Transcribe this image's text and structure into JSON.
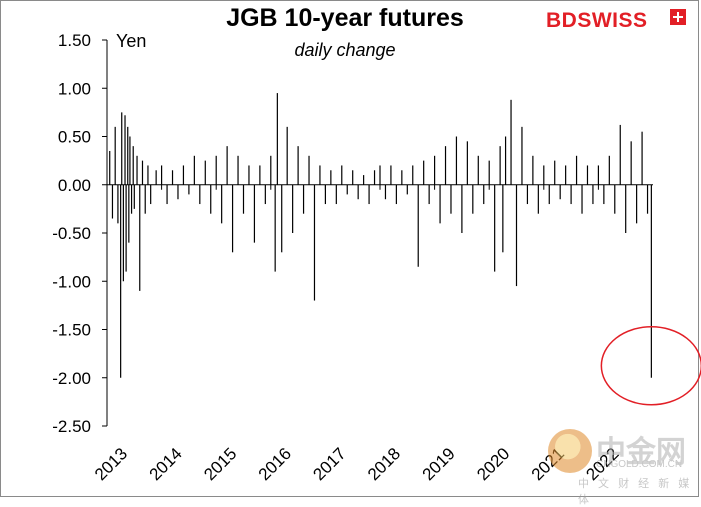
{
  "brand": {
    "prefix": "BD",
    "suffix": "SWISS"
  },
  "watermark": {
    "name": "中金网",
    "domain": "CNGOLD.COM.CN",
    "tagline": "中 文 财 经 新 媒 体"
  },
  "chart_data": {
    "type": "bar",
    "title": "JGB 10-year futures",
    "subtitle": "daily change",
    "ylabel": "Yen",
    "xlabel": "",
    "ylim": [
      -2.5,
      1.5
    ],
    "yticks": [
      1.5,
      1.0,
      0.5,
      0.0,
      -0.5,
      -1.0,
      -1.5,
      -2.0,
      -2.5
    ],
    "ytick_labels": [
      "1.50",
      "1.00",
      "0.50",
      "0.00",
      "-0.50",
      "-1.00",
      "-1.50",
      "-2.00",
      "-2.50"
    ],
    "xlim": [
      2013.0,
      2023.0
    ],
    "xtick_labels": [
      "2013",
      "2014",
      "2015",
      "2016",
      "2017",
      "2018",
      "2019",
      "2020",
      "2021",
      "2022"
    ],
    "grid": false,
    "highlight": {
      "shape": "ellipse",
      "color": "#e21f26",
      "around": "last observation"
    },
    "series": [
      {
        "color": "#000000",
        "x": [
          2013.05,
          2013.1,
          2013.15,
          2013.2,
          2013.25,
          2013.27,
          2013.3,
          2013.33,
          2013.35,
          2013.38,
          2013.4,
          2013.42,
          2013.45,
          2013.48,
          2013.5,
          2013.55,
          2013.6,
          2013.65,
          2013.7,
          2013.75,
          2013.8,
          2013.9,
          2014.0,
          2014.1,
          2014.2,
          2014.3,
          2014.4,
          2014.5,
          2014.6,
          2014.7,
          2014.8,
          2014.9,
          2015.0,
          2015.1,
          2015.2,
          2015.3,
          2015.4,
          2015.5,
          2015.6,
          2015.7,
          2015.8,
          2015.9,
          2016.0,
          2016.08,
          2016.12,
          2016.2,
          2016.3,
          2016.4,
          2016.5,
          2016.6,
          2016.7,
          2016.8,
          2016.9,
          2017.0,
          2017.1,
          2017.2,
          2017.3,
          2017.4,
          2017.5,
          2017.6,
          2017.7,
          2017.8,
          2017.9,
          2018.0,
          2018.1,
          2018.2,
          2018.3,
          2018.4,
          2018.5,
          2018.6,
          2018.7,
          2018.8,
          2018.9,
          2019.0,
          2019.1,
          2019.2,
          2019.3,
          2019.4,
          2019.5,
          2019.6,
          2019.7,
          2019.8,
          2019.9,
          2020.0,
          2020.1,
          2020.2,
          2020.25,
          2020.3,
          2020.4,
          2020.5,
          2020.6,
          2020.7,
          2020.8,
          2020.9,
          2021.0,
          2021.1,
          2021.2,
          2021.3,
          2021.4,
          2021.5,
          2021.6,
          2021.7,
          2021.8,
          2021.9,
          2022.0,
          2022.1,
          2022.2,
          2022.3,
          2022.4,
          2022.5,
          2022.6,
          2022.7,
          2022.8,
          2022.9,
          2022.97
        ],
        "values": [
          0.35,
          -0.35,
          0.6,
          -0.4,
          -2.0,
          0.75,
          -1.0,
          0.72,
          -0.9,
          0.6,
          -0.6,
          0.5,
          -0.3,
          0.4,
          -0.25,
          0.3,
          -1.1,
          0.25,
          -0.3,
          0.2,
          -0.2,
          0.15,
          0.2,
          -0.2,
          0.15,
          -0.15,
          0.2,
          -0.1,
          0.3,
          -0.2,
          0.25,
          -0.3,
          0.3,
          -0.4,
          0.4,
          -0.7,
          0.3,
          -0.3,
          0.2,
          -0.6,
          0.2,
          -0.2,
          0.3,
          -0.9,
          0.95,
          -0.7,
          0.6,
          -0.5,
          0.4,
          -0.3,
          0.3,
          -1.2,
          0.2,
          -0.2,
          0.15,
          -0.2,
          0.2,
          -0.1,
          0.15,
          -0.15,
          0.1,
          -0.2,
          0.15,
          0.2,
          -0.15,
          0.2,
          -0.2,
          0.15,
          -0.1,
          0.2,
          -0.85,
          0.25,
          -0.2,
          0.3,
          -0.4,
          0.4,
          -0.3,
          0.5,
          -0.5,
          0.45,
          -0.3,
          0.3,
          -0.2,
          0.25,
          -0.9,
          0.4,
          -0.7,
          0.5,
          0.88,
          -1.05,
          0.6,
          -0.2,
          0.3,
          -0.3,
          0.2,
          -0.2,
          0.25,
          -0.15,
          0.2,
          -0.2,
          0.3,
          -0.3,
          0.2,
          -0.2,
          0.2,
          -0.2,
          0.3,
          -0.3,
          0.62,
          -0.5,
          0.45,
          -0.4,
          0.55,
          -0.3,
          -2.0
        ]
      }
    ]
  }
}
